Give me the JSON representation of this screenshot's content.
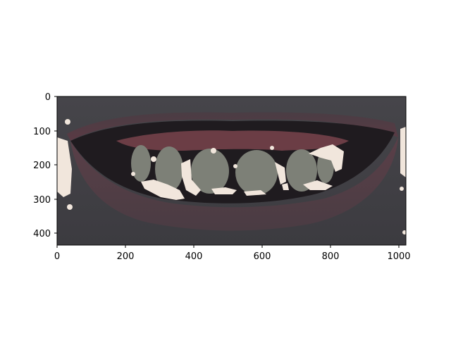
{
  "figure": {
    "x_axis": {
      "range": [
        0,
        1020
      ],
      "ticks": [
        0,
        200,
        400,
        600,
        800,
        1000
      ],
      "labels": [
        "0",
        "200",
        "400",
        "600",
        "800",
        "1000"
      ]
    },
    "y_axis": {
      "range": [
        0,
        435
      ],
      "ticks": [
        0,
        100,
        200,
        300,
        400
      ],
      "labels": [
        "0",
        "100",
        "200",
        "300",
        "400"
      ],
      "inverted": true
    },
    "image": {
      "subject": "mouth-with-teeth-overlay",
      "overlay_color": "#7d8077",
      "highlight_color": "#f1e6dc"
    }
  }
}
